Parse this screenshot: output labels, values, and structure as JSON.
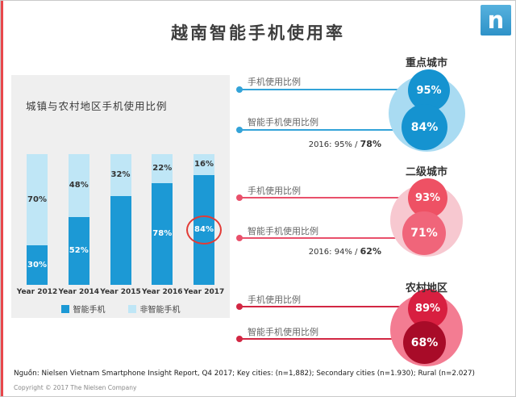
{
  "page": {
    "title": "越南智能手机使用率",
    "logo_letter": "n",
    "source": "Nguồn: Nielsen Vietnam Smartphone Insight Report, Q4 2017; Key cities:  (n=1,882); Secondary cities (n=1.930); Rural (n=2.027)",
    "copyright": "Copyright © 2017 The Nielsen Company"
  },
  "chart_data": {
    "type": "bar",
    "stacked": true,
    "title": "城镇与农村地区手机使用比例",
    "categories": [
      "Year 2012",
      "Year 2014",
      "Year 2015",
      "Year 2016",
      "Year 2017"
    ],
    "series": [
      {
        "name": "智能手机",
        "color": "#1c99d5",
        "values": [
          30,
          52,
          68,
          78,
          84
        ],
        "labels": [
          "30%",
          "52%",
          "",
          "78%",
          "84%"
        ]
      },
      {
        "name": "非智能手机",
        "color": "#bfe6f6",
        "values": [
          70,
          48,
          32,
          22,
          16
        ],
        "labels": [
          "70%",
          "48%",
          "32%",
          "22%",
          "16%"
        ]
      }
    ],
    "ylim": [
      0,
      100
    ],
    "legend_position": "bottom",
    "annotation": {
      "type": "circle-highlight",
      "color": "#e23b36",
      "target_category": "Year 2017",
      "target_value": "84%"
    }
  },
  "stat_groups": [
    {
      "name": "重点城市",
      "theme_color": "#1593d0",
      "rows": [
        {
          "label": "手机使用比例",
          "value": "95%"
        },
        {
          "label": "智能手机使用比例",
          "value": "84%"
        }
      ],
      "note_prefix": "2016: 95% / ",
      "note_bold": "78%"
    },
    {
      "name": "二级城市",
      "theme_color": "#ee5164",
      "rows": [
        {
          "label": "手机使用比例",
          "value": "93%"
        },
        {
          "label": "智能手机使用比例",
          "value": "71%"
        }
      ],
      "note_prefix": "2016: 94% / ",
      "note_bold": "62%"
    },
    {
      "name": "农村地区",
      "theme_color": "#d81f40",
      "rows": [
        {
          "label": "手机使用比例",
          "value": "89%"
        },
        {
          "label": "智能手机使用比例",
          "value": "68%"
        }
      ],
      "note_prefix": "",
      "note_bold": ""
    }
  ]
}
